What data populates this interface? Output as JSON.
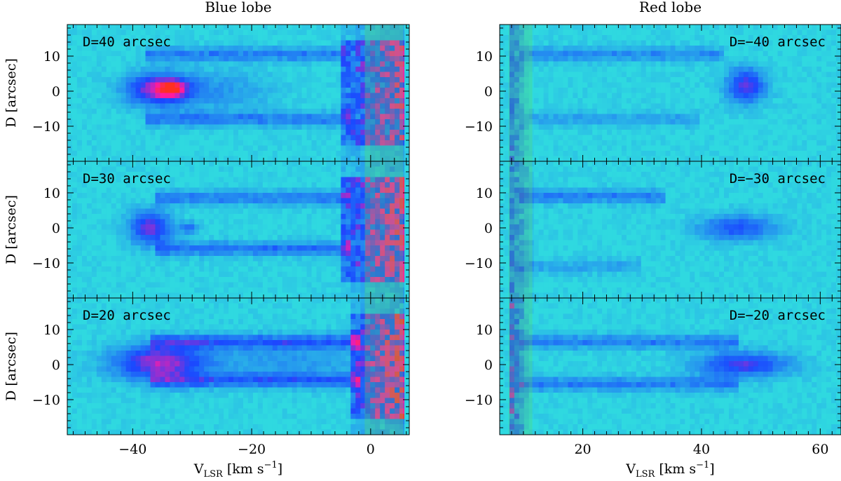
{
  "chart_data": [
    {
      "type": "heatmap",
      "title": "Blue lobe",
      "xlabel": "V_LSR [km s^-1]",
      "ylabel": "D [arcsec]",
      "xlim": [
        -51,
        6.5
      ],
      "ylim": [
        -20,
        19
      ],
      "xticks": [
        -40,
        -20,
        0
      ],
      "yticks": [
        -10,
        0,
        10
      ],
      "colormap": [
        "#2fd9e0",
        "#1a48ff",
        "#ff1aa8",
        "#ff3020"
      ],
      "panels": [
        {
          "label": "D=40 arcsec",
          "features": [
            {
              "kind": "core",
              "x": -35.5,
              "y": 0.5,
              "sx": 3.8,
              "sy": 3.2,
              "intensity": 0.75
            },
            {
              "kind": "core",
              "x": -33.5,
              "y": 0.8,
              "sx": 1.3,
              "sy": 1.2,
              "intensity": 1.0
            },
            {
              "kind": "core",
              "x": -25,
              "y": 0,
              "sx": 6,
              "sy": 4,
              "intensity": 0.2
            },
            {
              "kind": "arm",
              "x0": -38,
              "x1": -4,
              "y": 10.5,
              "intensity": 0.35
            },
            {
              "kind": "arm",
              "x0": -38,
              "x1": -3,
              "y": -8,
              "intensity": 0.35
            },
            {
              "kind": "edge",
              "x0": -5,
              "x1": 5.5,
              "intensity": 0.9
            }
          ]
        },
        {
          "label": "D=30 arcsec",
          "features": [
            {
              "kind": "core",
              "x": -37,
              "y": 0,
              "sx": 2.5,
              "sy": 3.5,
              "intensity": 0.6
            },
            {
              "kind": "core",
              "x": -30.5,
              "y": 0,
              "sx": 1.2,
              "sy": 1.2,
              "intensity": 0.35
            },
            {
              "kind": "arm",
              "x0": -36,
              "x1": -3,
              "y": 8.5,
              "intensity": 0.35
            },
            {
              "kind": "arm",
              "x0": -36,
              "x1": -3,
              "y": -6,
              "intensity": 0.4
            },
            {
              "kind": "edge",
              "x0": -5,
              "x1": 5.5,
              "intensity": 1.0
            }
          ]
        },
        {
          "label": "D=20 arcsec",
          "features": [
            {
              "kind": "core",
              "x": -35.5,
              "y": 0.5,
              "sx": 5.5,
              "sy": 3.5,
              "intensity": 0.7
            },
            {
              "kind": "arm",
              "x0": -37,
              "x1": -2,
              "y": 6.5,
              "intensity": 0.45
            },
            {
              "kind": "arm",
              "x0": -37,
              "x1": -2,
              "y": -4.5,
              "intensity": 0.45
            },
            {
              "kind": "core",
              "x": -14,
              "y": 1,
              "sx": 10,
              "sy": 4,
              "intensity": 0.2
            },
            {
              "kind": "edge",
              "x0": -3,
              "x1": 5.5,
              "intensity": 1.1
            }
          ]
        }
      ]
    },
    {
      "type": "heatmap",
      "title": "Red lobe",
      "xlabel": "V_LSR [km s^-1]",
      "ylabel": "",
      "xlim": [
        6,
        63.5
      ],
      "ylim": [
        -20,
        19
      ],
      "xticks": [
        20,
        40,
        60
      ],
      "yticks": [
        -10,
        0,
        10
      ],
      "colormap": [
        "#2fd9e0",
        "#1a48ff",
        "#ff1aa8",
        "#ff3020"
      ],
      "panels": [
        {
          "label": "D=−40 arcsec",
          "features": [
            {
              "kind": "core",
              "x": 47.5,
              "y": 1.5,
              "sx": 2.3,
              "sy": 3.5,
              "intensity": 0.6
            },
            {
              "kind": "arm",
              "x0": 9,
              "x1": 44,
              "y": 10.5,
              "intensity": 0.3
            },
            {
              "kind": "arm",
              "x0": 9,
              "x1": 40,
              "y": -8,
              "intensity": 0.2
            },
            {
              "kind": "redge",
              "x0": 8,
              "x1": 11,
              "intensity": 0.6
            }
          ]
        },
        {
          "label": "D=−30 arcsec",
          "features": [
            {
              "kind": "core",
              "x": 46,
              "y": 0,
              "sx": 4.5,
              "sy": 2.5,
              "intensity": 0.45
            },
            {
              "kind": "arm",
              "x0": 9,
              "x1": 34,
              "y": 9,
              "intensity": 0.35
            },
            {
              "kind": "arm",
              "x0": 9,
              "x1": 30,
              "y": -11,
              "intensity": 0.2
            },
            {
              "kind": "redge",
              "x0": 8,
              "x1": 12,
              "intensity": 0.6
            }
          ]
        },
        {
          "label": "D=−20 arcsec",
          "features": [
            {
              "kind": "core",
              "x": 47,
              "y": 0,
              "sx": 5.5,
              "sy": 2.5,
              "intensity": 0.55
            },
            {
              "kind": "arm",
              "x0": 9,
              "x1": 46,
              "y": 6.5,
              "intensity": 0.35
            },
            {
              "kind": "arm",
              "x0": 9,
              "x1": 46,
              "y": -5.5,
              "intensity": 0.35
            },
            {
              "kind": "redge",
              "x0": 8,
              "x1": 11,
              "intensity": 0.8
            }
          ]
        }
      ]
    }
  ]
}
